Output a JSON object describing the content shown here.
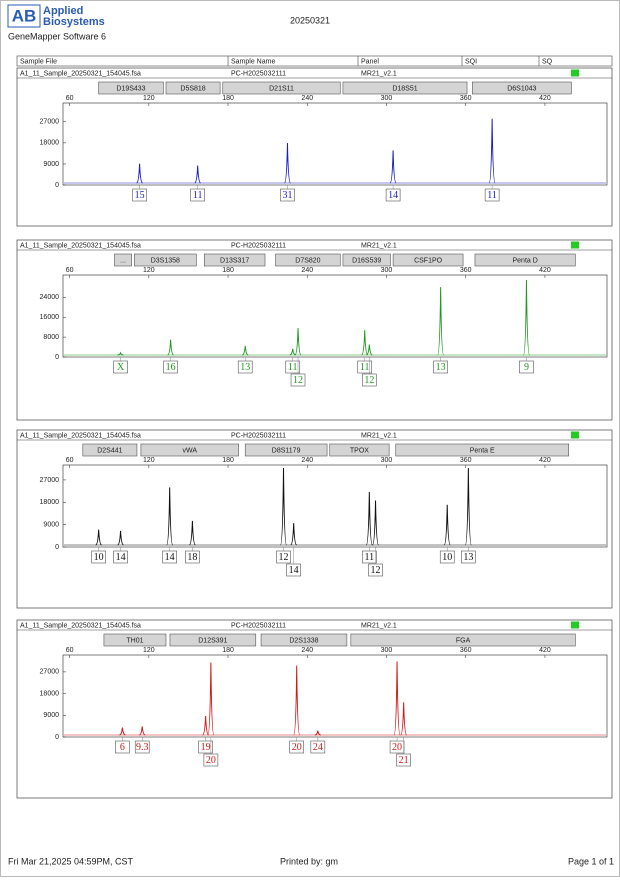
{
  "header": {
    "logo_mark": "AB",
    "brand_line1": "Applied",
    "brand_line2": "Biosystems",
    "software": "GeneMapper Software 6",
    "date": "20250321"
  },
  "columns": [
    "Sample File",
    "Sample Name",
    "Panel",
    "SQI",
    "SQ"
  ],
  "chart_data": [
    {
      "type": "electropherogram",
      "sample_file": "A1_11_Sample_20250321_154045.fsa",
      "sample_name": "PC-H2025032111",
      "panel": "MR21_v2.1",
      "color": "#1c1cc8",
      "xlim": [
        55,
        467
      ],
      "xticks": [
        60,
        120,
        180,
        240,
        300,
        360,
        420
      ],
      "ylim": [
        0,
        35000
      ],
      "yticks": [
        0,
        9000,
        18000,
        27000
      ],
      "markers": [
        {
          "name": "D19S433",
          "range": [
            82,
            131
          ]
        },
        {
          "name": "D5S818",
          "range": [
            133,
            174
          ]
        },
        {
          "name": "D21S11",
          "range": [
            176,
            265
          ]
        },
        {
          "name": "D18S51",
          "range": [
            267,
            361
          ]
        },
        {
          "name": "D6S1043",
          "range": [
            365,
            440
          ]
        }
      ],
      "peaks": {
        "x": [
          113,
          157,
          225,
          305,
          380
        ],
        "values": [
          9100,
          8300,
          17900,
          14800,
          28300
        ],
        "alleles": [
          "15",
          "11",
          "31",
          "14",
          "11"
        ]
      }
    },
    {
      "type": "electropherogram",
      "sample_file": "A1_11_Sample_20250321_154045.fsa",
      "sample_name": "PC-H2025032111",
      "panel": "MR21_v2.1",
      "color": "#1f9a1f",
      "xlim": [
        55,
        467
      ],
      "xticks": [
        60,
        120,
        180,
        240,
        300,
        360,
        420
      ],
      "ylim": [
        0,
        33000
      ],
      "yticks": [
        0,
        8000,
        16000,
        24000
      ],
      "markers": [
        {
          "name": "...",
          "range": [
            94,
            107
          ]
        },
        {
          "name": "D3S1358",
          "range": [
            109,
            156
          ]
        },
        {
          "name": "D13S317",
          "range": [
            162,
            208
          ]
        },
        {
          "name": "D7S820",
          "range": [
            216,
            265
          ]
        },
        {
          "name": "D16S539",
          "range": [
            267,
            303
          ]
        },
        {
          "name": "CSF1PO",
          "range": [
            305,
            358
          ]
        },
        {
          "name": "Penta D",
          "range": [
            367,
            443
          ]
        }
      ],
      "peaks": {
        "x": [
          98.6,
          136.5,
          193,
          229,
          233,
          283.5,
          287,
          341,
          406
        ],
        "values": [
          1650,
          7000,
          4500,
          3300,
          11600,
          10800,
          5000,
          28100,
          31000
        ],
        "alleles": [
          "X",
          "16",
          "13",
          "11",
          "12",
          "11",
          "12",
          "13",
          "9"
        ]
      }
    },
    {
      "type": "electropherogram",
      "sample_file": "A1_11_Sample_20250321_154045.fsa",
      "sample_name": "PC-H2025032111",
      "panel": "MR21_v2.1",
      "color": "#111111",
      "xlim": [
        55,
        467
      ],
      "xticks": [
        60,
        120,
        180,
        240,
        300,
        360,
        420
      ],
      "ylim": [
        0,
        33000
      ],
      "yticks": [
        0,
        9000,
        18000,
        27000
      ],
      "markers": [
        {
          "name": "D2S441",
          "range": [
            70,
            111
          ]
        },
        {
          "name": "vWA",
          "range": [
            114,
            188
          ]
        },
        {
          "name": "D8S1179",
          "range": [
            193,
            255
          ]
        },
        {
          "name": "TPOX",
          "range": [
            257,
            302
          ]
        },
        {
          "name": "Penta E",
          "range": [
            307,
            438
          ]
        }
      ],
      "peaks": {
        "x": [
          82,
          98.6,
          135.8,
          153,
          222,
          229.7,
          287,
          291.7,
          346,
          362
        ],
        "values": [
          7000,
          6500,
          24000,
          10500,
          31800,
          9600,
          22200,
          18700,
          17000,
          31800
        ],
        "alleles": [
          "10",
          "14",
          "14",
          "18",
          "12",
          "14",
          "11",
          "12",
          "10",
          "13"
        ]
      }
    },
    {
      "type": "electropherogram",
      "sample_file": "A1_11_Sample_20250321_154045.fsa",
      "sample_name": "PC-H2025032111",
      "panel": "MR21_v2.1",
      "color": "#d01818",
      "xlim": [
        55,
        467
      ],
      "xticks": [
        60,
        120,
        180,
        240,
        300,
        360,
        420
      ],
      "ylim": [
        0,
        34000
      ],
      "yticks": [
        0,
        9000,
        18000,
        27000
      ],
      "markers": [
        {
          "name": "TH01",
          "range": [
            86,
            133
          ]
        },
        {
          "name": "D12S391",
          "range": [
            136,
            201
          ]
        },
        {
          "name": "D2S1338",
          "range": [
            205,
            270
          ]
        },
        {
          "name": "FGA",
          "range": [
            273,
            443
          ]
        }
      ],
      "peaks": {
        "x": [
          100,
          115,
          163,
          167,
          232,
          248,
          308,
          313
        ],
        "values": [
          3900,
          4400,
          8700,
          30900,
          29600,
          2600,
          31300,
          14400
        ],
        "alleles": [
          "6",
          "9.3",
          "19",
          "20",
          "20",
          "24",
          "20",
          "21"
        ]
      }
    }
  ],
  "footer": {
    "printed_at": "Fri Mar 21,2025 04:59PM, CST",
    "printed_by": "Printed by: gm",
    "page": "Page 1 of 1"
  }
}
